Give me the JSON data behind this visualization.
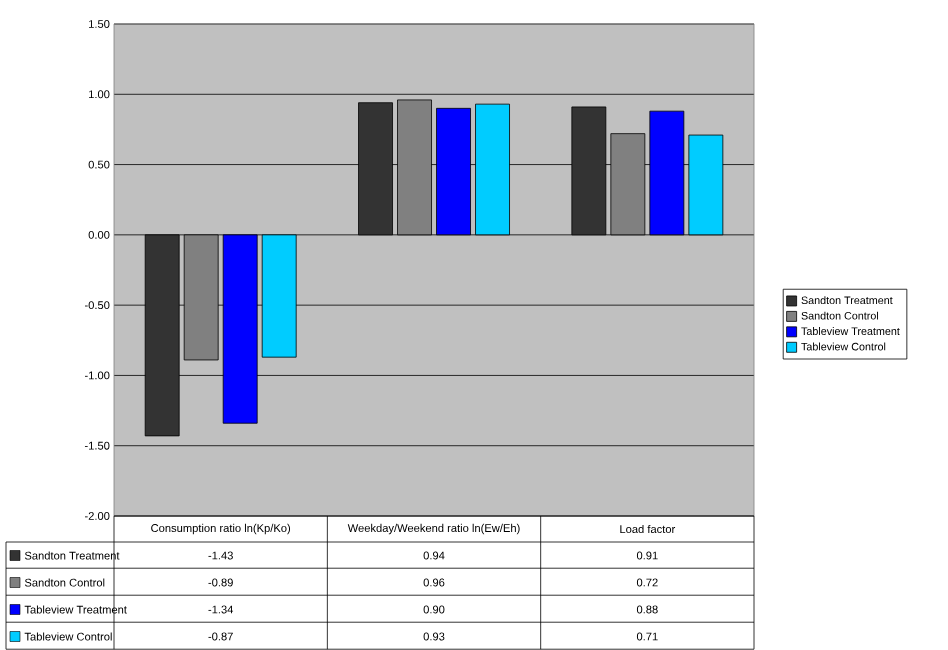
{
  "chart_data": {
    "type": "bar",
    "categories": [
      "Consumption ratio ln(Kp/Ko)",
      "Weekday/Weekend ratio ln(Ew/Eh)",
      "Load factor"
    ],
    "series": [
      {
        "name": "Sandton Treatment",
        "color": "#333333",
        "values": [
          -1.43,
          0.94,
          0.91
        ],
        "value_labels": [
          "-1.43",
          "0.94",
          "0.91"
        ]
      },
      {
        "name": "Sandton Control",
        "color": "#808080",
        "values": [
          -0.89,
          0.96,
          0.72
        ],
        "value_labels": [
          "-0.89",
          "0.96",
          "0.72"
        ]
      },
      {
        "name": "Tableview Treatment",
        "color": "#0000ff",
        "values": [
          -1.34,
          0.9,
          0.88
        ],
        "value_labels": [
          "-1.34",
          "0.90",
          "0.88"
        ]
      },
      {
        "name": "Tableview Control",
        "color": "#00ccff",
        "values": [
          -0.87,
          0.93,
          0.71
        ],
        "value_labels": [
          "-0.87",
          "0.93",
          "0.71"
        ]
      }
    ],
    "ylim": [
      -2,
      1.5
    ],
    "yticks": [
      {
        "value": -2,
        "label": "-2.00"
      },
      {
        "value": -1.5,
        "label": "-1.50"
      },
      {
        "value": -1,
        "label": "-1.00"
      },
      {
        "value": -0.5,
        "label": "-0.50"
      },
      {
        "value": 0,
        "label": "0.00"
      },
      {
        "value": 0.5,
        "label": "0.50"
      },
      {
        "value": 1,
        "label": "1.00"
      },
      {
        "value": 1.5,
        "label": "1.50"
      }
    ],
    "grid": "y",
    "legend": "right"
  }
}
